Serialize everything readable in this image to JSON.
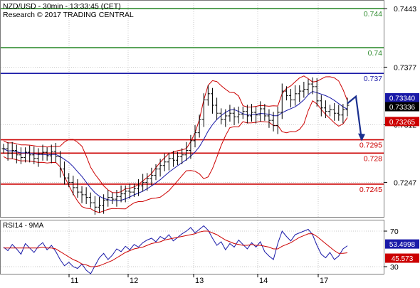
{
  "header": {
    "title": "NZD/USD - 30min - 13:33:45 (CET)",
    "subtitle": "Research © 2017 TRADING CENTRAL"
  },
  "colors": {
    "price": "#000000",
    "bollinger": "#cc0000",
    "ma": "#1a1aa8",
    "resistance_green": "#2e8b2e",
    "resistance_blue": "#1a1aa8",
    "support_red": "#cc0000",
    "projection_arrow": "#1a2f8f",
    "rsi": "#1a1aa8",
    "rsi_ma": "#cc0000",
    "grid": "#c8c8c8"
  },
  "chart_data": [
    {
      "type": "candlestick",
      "instrument": "NZD/USD",
      "timeframe": "30min",
      "x_labels": [
        "11",
        "12",
        "13",
        "14",
        "17"
      ],
      "ylim": [
        0.7208,
        0.7452
      ],
      "y_ticks": [
        0.7443,
        0.7377,
        0.7312,
        0.7247
      ],
      "level_lines": [
        {
          "value": 0.7443,
          "label": "0.744",
          "color": "#2e8b2e"
        },
        {
          "value": 0.7399,
          "label": "0.74",
          "color": "#2e8b2e"
        },
        {
          "value": 0.737,
          "label": "0.737",
          "color": "#1a1aa8"
        },
        {
          "value": 0.7295,
          "label": "0.7295",
          "color": "#cc0000"
        },
        {
          "value": 0.728,
          "label": "0.728",
          "color": "#cc0000"
        },
        {
          "value": 0.7245,
          "label": "0.7245",
          "color": "#cc0000"
        }
      ],
      "current_labels": [
        {
          "value": 0.7334,
          "label": "0.73340",
          "color": "#1a1aa8"
        },
        {
          "value": 0.73336,
          "label": "0.73336",
          "color": "#000000"
        },
        {
          "value": 0.73265,
          "label": "0.73265",
          "color": "#cc0000"
        }
      ],
      "close_series": [
        0.7285,
        0.728,
        0.7283,
        0.7278,
        0.7275,
        0.7281,
        0.7278,
        0.7274,
        0.7279,
        0.7281,
        0.7277,
        0.7282,
        0.7276,
        0.7262,
        0.7252,
        0.7247,
        0.7241,
        0.7236,
        0.7233,
        0.723,
        0.7224,
        0.7219,
        0.7221,
        0.7227,
        0.723,
        0.7228,
        0.7231,
        0.7234,
        0.7237,
        0.7236,
        0.724,
        0.7243,
        0.7247,
        0.7251,
        0.7255,
        0.7262,
        0.7266,
        0.727,
        0.7274,
        0.7272,
        0.7276,
        0.7278,
        0.7283,
        0.7294,
        0.7303,
        0.7318,
        0.734,
        0.7347,
        0.7334,
        0.7325,
        0.7318,
        0.7322,
        0.7325,
        0.7321,
        0.7324,
        0.7327,
        0.7322,
        0.7326,
        0.7323,
        0.733,
        0.7322,
        0.7317,
        0.7311,
        0.7326,
        0.735,
        0.7345,
        0.734,
        0.7347,
        0.735,
        0.7352,
        0.7358,
        0.7355,
        0.7339,
        0.7331,
        0.7327,
        0.7329,
        0.7325,
        0.7323,
        0.7329,
        0.7334
      ],
      "projection": [
        0.7336,
        0.7344,
        0.7295
      ]
    },
    {
      "type": "line",
      "title": "RSI14 - 9MA",
      "series": [
        {
          "name": "RSI14",
          "values": [
            52,
            48,
            55,
            50,
            44,
            56,
            51,
            46,
            53,
            57,
            49,
            54,
            47,
            38,
            31,
            35,
            30,
            28,
            33,
            26,
            22,
            31,
            40,
            45,
            38,
            43,
            50,
            47,
            53,
            49,
            55,
            52,
            57,
            60,
            62,
            58,
            64,
            61,
            66,
            59,
            63,
            67,
            70,
            74,
            68,
            72,
            76,
            71,
            62,
            54,
            58,
            49,
            56,
            52,
            60,
            55,
            50,
            57,
            52,
            58,
            47,
            42,
            38,
            56,
            70,
            64,
            59,
            66,
            68,
            70,
            72,
            66,
            54,
            44,
            40,
            46,
            38,
            42,
            50,
            53.4998
          ]
        },
        {
          "name": "9MA",
          "values": [
            51,
            51,
            51,
            51,
            51,
            51,
            51,
            51,
            51,
            52,
            51,
            51,
            50,
            47,
            44,
            41,
            38,
            36,
            33,
            32,
            30,
            30,
            31,
            33,
            35,
            37,
            40,
            43,
            46,
            48,
            50,
            51,
            52,
            54,
            56,
            57,
            58,
            60,
            61,
            62,
            63,
            64,
            65,
            66,
            67,
            69,
            70,
            70,
            68,
            66,
            63,
            60,
            58,
            56,
            55,
            54,
            54,
            55,
            54,
            54,
            53,
            52,
            50,
            50,
            53,
            55,
            57,
            60,
            63,
            65,
            67,
            67,
            64,
            60,
            56,
            52,
            48,
            45,
            45,
            45.573
          ]
        }
      ],
      "y_ticks": [
        70,
        30
      ],
      "ylim": [
        22,
        82
      ],
      "current_labels": [
        {
          "value": 53.4998,
          "label": "53.4998",
          "color": "#1a1aa8"
        },
        {
          "value": 45.573,
          "label": "45.573",
          "color": "#cc0000"
        }
      ]
    }
  ]
}
